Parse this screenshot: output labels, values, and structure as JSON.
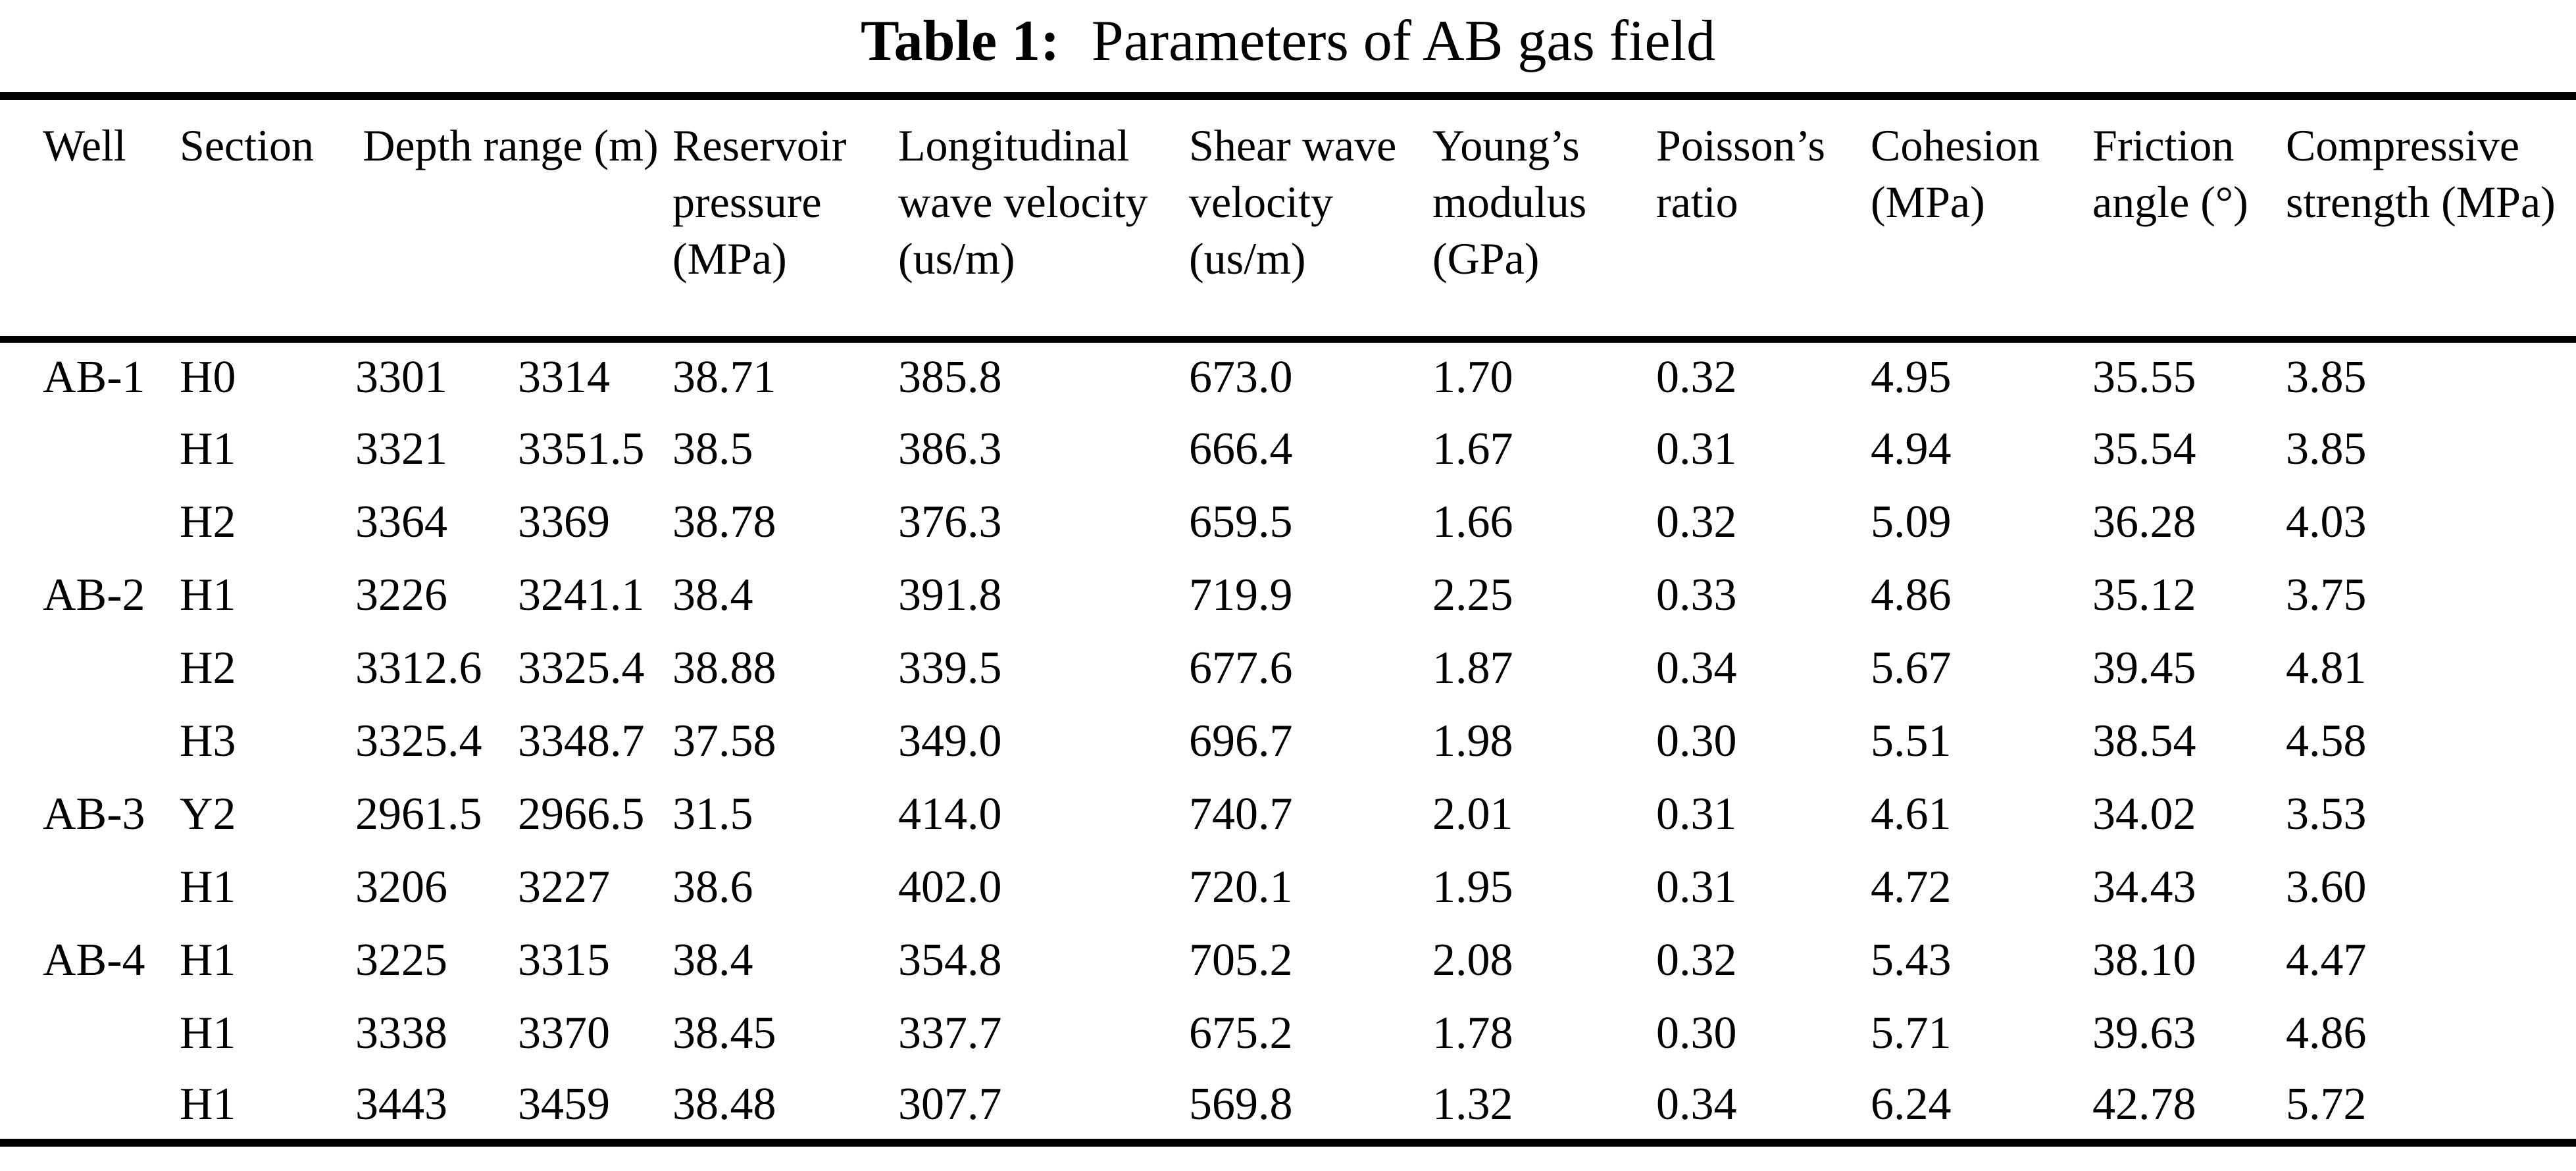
{
  "title": {
    "prefix": "Table 1:",
    "text": "Parameters of AB gas field"
  },
  "table": {
    "columns": [
      {
        "key": "well",
        "label": "Well",
        "colspan": 1
      },
      {
        "key": "section",
        "label": "Section",
        "colspan": 1
      },
      {
        "key": "depth_range",
        "label": "Depth range (m)",
        "colspan": 2
      },
      {
        "key": "reservoir_pressure",
        "label": "Reservoir pressure (MPa)",
        "colspan": 1
      },
      {
        "key": "longitudinal_wave_velocity",
        "label": "Longitudinal wave velocity (us/m)",
        "colspan": 1
      },
      {
        "key": "shear_wave_velocity",
        "label": "Shear wave velocity (us/m)",
        "colspan": 1
      },
      {
        "key": "youngs_modulus",
        "label": "Young’s modulus (GPa)",
        "colspan": 1
      },
      {
        "key": "poissons_ratio",
        "label": "Poisson’s ratio",
        "colspan": 1
      },
      {
        "key": "cohesion",
        "label": "Cohesion (MPa)",
        "colspan": 1
      },
      {
        "key": "friction_angle",
        "label": "Friction angle (°)",
        "colspan": 1
      },
      {
        "key": "compressive_strength",
        "label": "Compressive strength (MPa)",
        "colspan": 1
      }
    ],
    "column_keys": [
      "well",
      "section",
      "depth_from",
      "depth_to",
      "reservoir_pressure",
      "longitudinal_wave_velocity",
      "shear_wave_velocity",
      "youngs_modulus",
      "poissons_ratio",
      "cohesion",
      "friction_angle",
      "compressive_strength"
    ],
    "rows": [
      [
        "AB-1",
        "H0",
        "3301",
        "3314",
        "38.71",
        "385.8",
        "673.0",
        "1.70",
        "0.32",
        "4.95",
        "35.55",
        "3.85"
      ],
      [
        "",
        "H1",
        "3321",
        "3351.5",
        "38.5",
        "386.3",
        "666.4",
        "1.67",
        "0.31",
        "4.94",
        "35.54",
        "3.85"
      ],
      [
        "",
        "H2",
        "3364",
        "3369",
        "38.78",
        "376.3",
        "659.5",
        "1.66",
        "0.32",
        "5.09",
        "36.28",
        "4.03"
      ],
      [
        "AB-2",
        "H1",
        "3226",
        "3241.1",
        "38.4",
        "391.8",
        "719.9",
        "2.25",
        "0.33",
        "4.86",
        "35.12",
        "3.75"
      ],
      [
        "",
        "H2",
        "3312.6",
        "3325.4",
        "38.88",
        "339.5",
        "677.6",
        "1.87",
        "0.34",
        "5.67",
        "39.45",
        "4.81"
      ],
      [
        "",
        "H3",
        "3325.4",
        "3348.7",
        "37.58",
        "349.0",
        "696.7",
        "1.98",
        "0.30",
        "5.51",
        "38.54",
        "4.58"
      ],
      [
        "AB-3",
        "Y2",
        "2961.5",
        "2966.5",
        "31.5",
        "414.0",
        "740.7",
        "2.01",
        "0.31",
        "4.61",
        "34.02",
        "3.53"
      ],
      [
        "",
        "H1",
        "3206",
        "3227",
        "38.6",
        "402.0",
        "720.1",
        "1.95",
        "0.31",
        "4.72",
        "34.43",
        "3.60"
      ],
      [
        "AB-4",
        "H1",
        "3225",
        "3315",
        "38.4",
        "354.8",
        "705.2",
        "2.08",
        "0.32",
        "5.43",
        "38.10",
        "4.47"
      ],
      [
        "",
        "H1",
        "3338",
        "3370",
        "38.45",
        "337.7",
        "675.2",
        "1.78",
        "0.30",
        "5.71",
        "39.63",
        "4.86"
      ],
      [
        "",
        "H1",
        "3443",
        "3459",
        "38.48",
        "307.7",
        "569.8",
        "1.32",
        "0.34",
        "6.24",
        "42.78",
        "5.72"
      ]
    ]
  }
}
